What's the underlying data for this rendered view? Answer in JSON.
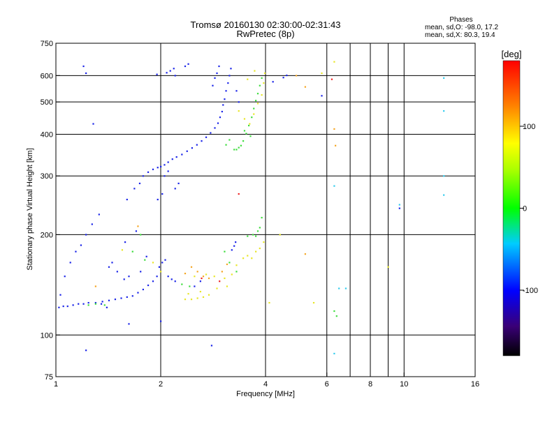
{
  "chart_data": {
    "type": "scatter",
    "title": "Tromsø 20160130 02:30:00-02:31:43",
    "subtitle": "RwPretec (8p)",
    "xlabel": "Frequency [MHz]",
    "ylabel": "Stationary phase Virtual Height [km]",
    "x_scale": "log",
    "y_scale": "log",
    "xlim": [
      1,
      16
    ],
    "ylim": [
      75,
      750
    ],
    "x_ticks": [
      1,
      2,
      4,
      6,
      8,
      10,
      16
    ],
    "x_minor_ticks": [
      7,
      9
    ],
    "x_grid_lines": [
      2,
      4,
      6,
      8,
      10
    ],
    "y_ticks": [
      75,
      100,
      200,
      300,
      400,
      500,
      600,
      750
    ],
    "y_grid_lines": [
      100,
      200,
      300,
      400,
      500,
      600
    ],
    "grid": true,
    "colorbar": {
      "label": "[deg]",
      "range": [
        -180,
        180
      ],
      "ticks": [
        -100,
        0,
        100
      ]
    },
    "stats": {
      "title": "Phases",
      "line_o": "mean, sd,O: -98.0, 17.2",
      "line_x": "mean, sd,X:  80.3, 19.4"
    },
    "series": [
      {
        "color": "blue",
        "points": [
          [
            1.02,
            121
          ],
          [
            1.05,
            122
          ],
          [
            1.08,
            122
          ],
          [
            1.12,
            123
          ],
          [
            1.16,
            124
          ],
          [
            1.2,
            124
          ],
          [
            1.24,
            125
          ],
          [
            1.3,
            125
          ],
          [
            1.36,
            126
          ],
          [
            1.42,
            127
          ],
          [
            1.48,
            128
          ],
          [
            1.54,
            129
          ],
          [
            1.6,
            130
          ],
          [
            1.66,
            131
          ],
          [
            1.72,
            134
          ],
          [
            1.78,
            137
          ],
          [
            1.84,
            141
          ],
          [
            1.9,
            145
          ],
          [
            1.95,
            150
          ],
          [
            1.98,
            160
          ],
          [
            2.02,
            165
          ],
          [
            2.06,
            168
          ],
          [
            1.03,
            132
          ],
          [
            1.06,
            150
          ],
          [
            1.1,
            165
          ],
          [
            1.14,
            178
          ],
          [
            1.22,
            200
          ],
          [
            1.27,
            215
          ],
          [
            1.33,
            230
          ],
          [
            1.42,
            160
          ],
          [
            1.5,
            155
          ],
          [
            1.57,
            147
          ],
          [
            1.62,
            150
          ],
          [
            1.75,
            155
          ],
          [
            1.82,
            172
          ],
          [
            2.1,
            150
          ],
          [
            2.15,
            147
          ],
          [
            2.2,
            145
          ],
          [
            1.6,
            255
          ],
          [
            1.68,
            275
          ],
          [
            1.74,
            285
          ],
          [
            1.78,
            300
          ],
          [
            1.84,
            308
          ],
          [
            1.9,
            314
          ],
          [
            1.96,
            318
          ],
          [
            2.0,
            320
          ],
          [
            2.05,
            324
          ],
          [
            2.1,
            330
          ],
          [
            2.16,
            337
          ],
          [
            2.22,
            342
          ],
          [
            2.3,
            348
          ],
          [
            2.38,
            356
          ],
          [
            2.46,
            364
          ],
          [
            2.54,
            372
          ],
          [
            2.62,
            382
          ],
          [
            2.7,
            392
          ],
          [
            2.78,
            404
          ],
          [
            2.86,
            418
          ],
          [
            2.92,
            432
          ],
          [
            2.96,
            450
          ],
          [
            3.0,
            468
          ],
          [
            3.02,
            490
          ],
          [
            3.05,
            510
          ],
          [
            3.08,
            540
          ],
          [
            3.12,
            570
          ],
          [
            3.15,
            600
          ],
          [
            3.18,
            630
          ],
          [
            2.82,
            560
          ],
          [
            2.86,
            590
          ],
          [
            2.9,
            610
          ],
          [
            2.94,
            640
          ],
          [
            2.08,
            612
          ],
          [
            2.13,
            620
          ],
          [
            2.18,
            630
          ],
          [
            2.2,
            600
          ],
          [
            1.95,
            605
          ],
          [
            2.35,
            640
          ],
          [
            2.4,
            650
          ],
          [
            1.96,
            255
          ],
          [
            2.02,
            265
          ],
          [
            2.2,
            275
          ],
          [
            2.25,
            285
          ],
          [
            2.1,
            310
          ],
          [
            2.05,
            300
          ],
          [
            3.2,
            180
          ],
          [
            3.25,
            185
          ],
          [
            3.28,
            190
          ],
          [
            3.35,
            500
          ],
          [
            3.3,
            540
          ],
          [
            1.22,
            610
          ],
          [
            1.2,
            640
          ],
          [
            1.28,
            430
          ],
          [
            1.7,
            205
          ],
          [
            1.58,
            190
          ],
          [
            1.45,
            165
          ],
          [
            4.5,
            592
          ],
          [
            4.2,
            575
          ],
          [
            4.6,
            601
          ],
          [
            5.8,
            522
          ],
          [
            9.7,
            240
          ],
          [
            1.22,
            90
          ],
          [
            2.0,
            110
          ],
          [
            1.62,
            108
          ],
          [
            2.8,
            93
          ],
          [
            1.35,
            124
          ],
          [
            1.4,
            121
          ],
          [
            1.18,
            186
          ],
          [
            2.5,
            140
          ],
          [
            2.6,
            145
          ]
        ]
      },
      {
        "color": "green",
        "points": [
          [
            3.35,
            365
          ],
          [
            3.45,
            382
          ],
          [
            3.52,
            402
          ],
          [
            3.58,
            425
          ],
          [
            3.65,
            450
          ],
          [
            3.7,
            478
          ],
          [
            3.75,
            505
          ],
          [
            3.8,
            530
          ],
          [
            3.85,
            560
          ],
          [
            3.9,
            590
          ],
          [
            3.62,
            395
          ],
          [
            3.48,
            410
          ],
          [
            3.4,
            370
          ],
          [
            3.3,
            360
          ],
          [
            3.15,
            385
          ],
          [
            3.08,
            372
          ],
          [
            3.25,
            360
          ],
          [
            3.68,
            200
          ],
          [
            3.75,
            198
          ],
          [
            3.8,
            205
          ],
          [
            3.85,
            210
          ],
          [
            3.55,
            198
          ],
          [
            3.9,
            225
          ],
          [
            1.75,
            200
          ],
          [
            1.8,
            168
          ],
          [
            1.66,
            178
          ],
          [
            1.3,
            124
          ],
          [
            1.24,
            123
          ],
          [
            1.38,
            123
          ],
          [
            2.42,
            140
          ],
          [
            2.3,
            142
          ],
          [
            3.05,
            178
          ],
          [
            3.15,
            165
          ],
          [
            6.3,
            118
          ],
          [
            6.4,
            114
          ],
          [
            3.3,
            155
          ]
        ]
      },
      {
        "color": "yellow",
        "points": [
          [
            2.35,
            128
          ],
          [
            2.45,
            128
          ],
          [
            2.55,
            129
          ],
          [
            2.65,
            130
          ],
          [
            2.75,
            132
          ],
          [
            2.4,
            133
          ],
          [
            2.6,
            135
          ],
          [
            2.9,
            138
          ],
          [
            3.05,
            148
          ],
          [
            2.5,
            150
          ],
          [
            2.7,
            152
          ],
          [
            2.85,
            150
          ],
          [
            3.1,
            140
          ],
          [
            3.2,
            152
          ],
          [
            3.3,
            162
          ],
          [
            3.45,
            170
          ],
          [
            3.55,
            173
          ],
          [
            3.65,
            170
          ],
          [
            3.75,
            178
          ],
          [
            3.85,
            182
          ],
          [
            3.95,
            190
          ],
          [
            3.6,
            430
          ],
          [
            3.7,
            460
          ],
          [
            3.8,
            495
          ],
          [
            3.9,
            525
          ],
          [
            3.95,
            570
          ],
          [
            3.98,
            610
          ],
          [
            3.72,
            620
          ],
          [
            3.55,
            585
          ],
          [
            3.35,
            470
          ],
          [
            3.48,
            445
          ],
          [
            1.9,
            165
          ],
          [
            2.0,
            155
          ],
          [
            1.55,
            180
          ],
          [
            4.4,
            200
          ],
          [
            6.3,
            660
          ],
          [
            5.8,
            610
          ],
          [
            9.0,
            160
          ],
          [
            4.1,
            125
          ],
          [
            5.5,
            125
          ]
        ]
      },
      {
        "color": "orange",
        "points": [
          [
            2.45,
            160
          ],
          [
            2.55,
            155
          ],
          [
            2.65,
            150
          ],
          [
            2.75,
            148
          ],
          [
            3.0,
            155
          ],
          [
            3.1,
            163
          ],
          [
            2.35,
            153
          ],
          [
            5.2,
            555
          ],
          [
            4.9,
            600
          ],
          [
            6.35,
            370
          ],
          [
            6.3,
            415
          ],
          [
            1.3,
            140
          ],
          [
            1.72,
            212
          ],
          [
            5.2,
            175
          ]
        ]
      },
      {
        "color": "red",
        "points": [
          [
            3.35,
            265
          ],
          [
            6.2,
            585
          ],
          [
            2.62,
            148
          ],
          [
            2.95,
            145
          ]
        ]
      },
      {
        "color": "cyan",
        "points": [
          [
            6.5,
            138
          ],
          [
            6.8,
            138
          ],
          [
            6.3,
            88
          ],
          [
            9.7,
            246
          ],
          [
            13.0,
            590
          ],
          [
            13.0,
            470
          ],
          [
            13.0,
            263
          ],
          [
            6.3,
            280
          ],
          [
            13.0,
            300
          ]
        ]
      }
    ]
  }
}
